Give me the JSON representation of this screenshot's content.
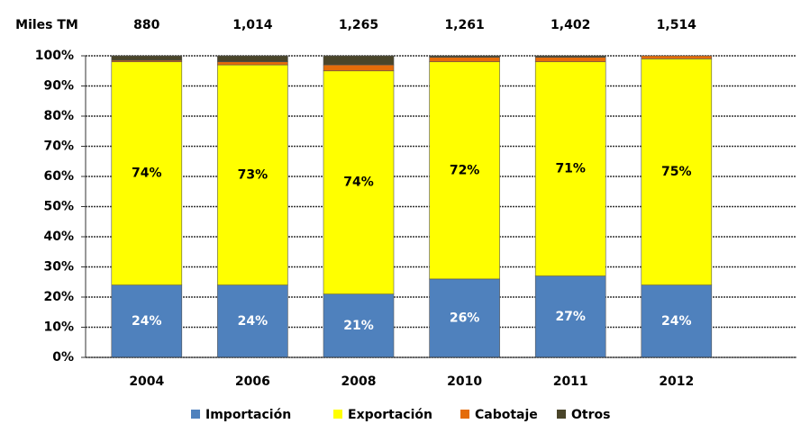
{
  "chart_data": {
    "type": "stacked_bar_percent",
    "totals_title": "Miles TM",
    "totals": [
      880,
      1014,
      1265,
      1261,
      1402,
      1514
    ],
    "total_labels": [
      "880",
      "1,014",
      "1,265",
      "1,261",
      "1,402",
      "1,514"
    ],
    "categories": [
      "2004",
      "2006",
      "2008",
      "2010",
      "2011",
      "2012"
    ],
    "series": [
      {
        "name": "Importación",
        "color": "#4f81bd",
        "values": [
          24,
          24,
          21,
          26,
          27,
          24
        ],
        "value_labels": [
          "24%",
          "24%",
          "21%",
          "26%",
          "27%",
          "24%"
        ]
      },
      {
        "name": "Exportación",
        "color": "#ffff00",
        "values": [
          74,
          73,
          74,
          72,
          71,
          75
        ],
        "value_labels": [
          "74%",
          "73%",
          "74%",
          "72%",
          "71%",
          "75%"
        ]
      },
      {
        "name": "Cabotaje",
        "color": "#e46c0a",
        "values": [
          0.5,
          1,
          2,
          1.5,
          1.5,
          1
        ]
      },
      {
        "name": "Otros",
        "color": "#4a452a",
        "values": [
          1.5,
          2,
          3,
          0.5,
          0.5,
          0
        ]
      }
    ],
    "ylim": [
      0,
      100
    ],
    "yticks": [
      {
        "value": 0,
        "label": "0%"
      },
      {
        "value": 10,
        "label": "10%"
      },
      {
        "value": 20,
        "label": "20%"
      },
      {
        "value": 30,
        "label": "30%"
      },
      {
        "value": 40,
        "label": "40%"
      },
      {
        "value": 50,
        "label": "50%"
      },
      {
        "value": 60,
        "label": "60%"
      },
      {
        "value": 70,
        "label": "70%"
      },
      {
        "value": 80,
        "label": "80%"
      },
      {
        "value": 90,
        "label": "90%"
      },
      {
        "value": 100,
        "label": "100%"
      }
    ],
    "grid": true,
    "legend": "bottom"
  }
}
